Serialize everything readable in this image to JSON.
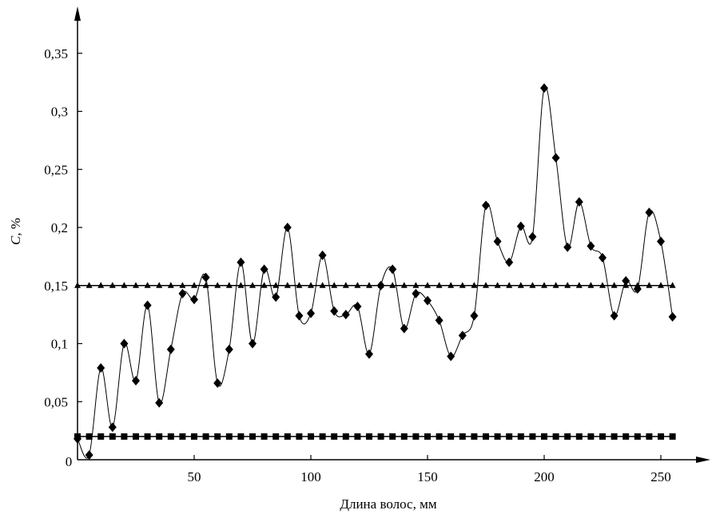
{
  "chart_data": {
    "type": "line",
    "xlabel": "Длина волос, мм",
    "ylabel": "C, %",
    "ylabel_italic_part": "C",
    "ylabel_rest": ", %",
    "xlim": [
      0,
      270
    ],
    "ylim": [
      0,
      0.38
    ],
    "xticks": [
      50,
      100,
      150,
      200,
      250
    ],
    "xtick_labels": [
      "50",
      "100",
      "150",
      "200",
      "250"
    ],
    "yticks": [
      0.05,
      0.1,
      0.15,
      0.2,
      0.25,
      0.3,
      0.35
    ],
    "ytick_labels": [
      "0,05",
      "0,1",
      "0,15",
      "0,2",
      "0,25",
      "0,3",
      "0,35"
    ],
    "origin_label": "0",
    "grid": false,
    "series": [
      {
        "marker": "diamond",
        "smooth": true,
        "x": [
          0,
          5,
          10,
          15,
          20,
          25,
          30,
          35,
          40,
          45,
          50,
          55,
          60,
          65,
          70,
          75,
          80,
          85,
          90,
          95,
          100,
          105,
          110,
          115,
          120,
          125,
          130,
          135,
          140,
          145,
          150,
          155,
          160,
          165,
          170,
          175,
          180,
          185,
          190,
          195,
          200,
          205,
          210,
          215,
          220,
          225,
          230,
          235,
          240,
          245,
          250,
          255
        ],
        "y": [
          0.018,
          0.004,
          0.079,
          0.028,
          0.1,
          0.068,
          0.133,
          0.049,
          0.095,
          0.143,
          0.138,
          0.157,
          0.066,
          0.095,
          0.17,
          0.1,
          0.164,
          0.14,
          0.2,
          0.124,
          0.126,
          0.176,
          0.128,
          0.125,
          0.132,
          0.091,
          0.15,
          0.164,
          0.113,
          0.143,
          0.137,
          0.12,
          0.089,
          0.107,
          0.124,
          0.219,
          0.188,
          0.17,
          0.201,
          0.192,
          0.32,
          0.26,
          0.183,
          0.222,
          0.184,
          0.174,
          0.124,
          0.154,
          0.147,
          0.213,
          0.188,
          0.123
        ]
      },
      {
        "marker": "triangle",
        "smooth": false,
        "x": [
          0,
          5,
          10,
          15,
          20,
          25,
          30,
          35,
          40,
          45,
          50,
          55,
          60,
          65,
          70,
          75,
          80,
          85,
          90,
          95,
          100,
          105,
          110,
          115,
          120,
          125,
          130,
          135,
          140,
          145,
          150,
          155,
          160,
          165,
          170,
          175,
          180,
          185,
          190,
          195,
          200,
          205,
          210,
          215,
          220,
          225,
          230,
          235,
          240,
          245,
          250,
          255
        ],
        "y": [
          0.15,
          0.15,
          0.15,
          0.15,
          0.15,
          0.15,
          0.15,
          0.15,
          0.15,
          0.15,
          0.15,
          0.15,
          0.15,
          0.15,
          0.15,
          0.15,
          0.15,
          0.15,
          0.15,
          0.15,
          0.15,
          0.15,
          0.15,
          0.15,
          0.15,
          0.15,
          0.15,
          0.15,
          0.15,
          0.15,
          0.15,
          0.15,
          0.15,
          0.15,
          0.15,
          0.15,
          0.15,
          0.15,
          0.15,
          0.15,
          0.15,
          0.15,
          0.15,
          0.15,
          0.15,
          0.15,
          0.15,
          0.15,
          0.15,
          0.15,
          0.15,
          0.15
        ]
      },
      {
        "marker": "square",
        "smooth": false,
        "x": [
          0,
          5,
          10,
          15,
          20,
          25,
          30,
          35,
          40,
          45,
          50,
          55,
          60,
          65,
          70,
          75,
          80,
          85,
          90,
          95,
          100,
          105,
          110,
          115,
          120,
          125,
          130,
          135,
          140,
          145,
          150,
          155,
          160,
          165,
          170,
          175,
          180,
          185,
          190,
          195,
          200,
          205,
          210,
          215,
          220,
          225,
          230,
          235,
          240,
          245,
          250,
          255
        ],
        "y": [
          0.02,
          0.02,
          0.02,
          0.02,
          0.02,
          0.02,
          0.02,
          0.02,
          0.02,
          0.02,
          0.02,
          0.02,
          0.02,
          0.02,
          0.02,
          0.02,
          0.02,
          0.02,
          0.02,
          0.02,
          0.02,
          0.02,
          0.02,
          0.02,
          0.02,
          0.02,
          0.02,
          0.02,
          0.02,
          0.02,
          0.02,
          0.02,
          0.02,
          0.02,
          0.02,
          0.02,
          0.02,
          0.02,
          0.02,
          0.02,
          0.02,
          0.02,
          0.02,
          0.02,
          0.02,
          0.02,
          0.02,
          0.02,
          0.02,
          0.02,
          0.02,
          0.02
        ]
      }
    ]
  }
}
